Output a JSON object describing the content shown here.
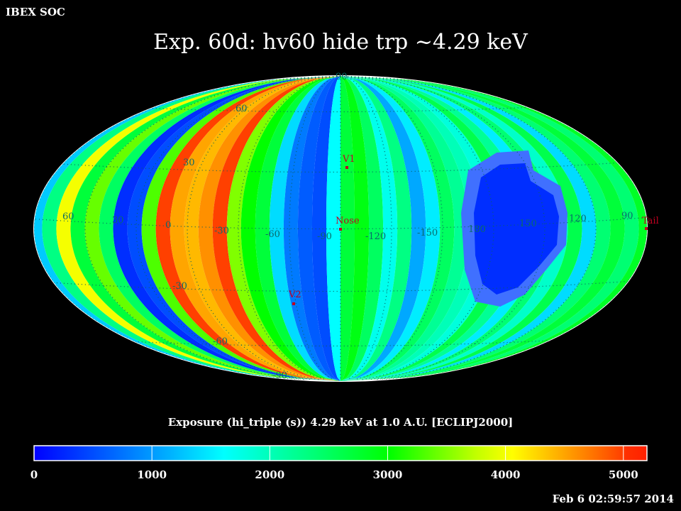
{
  "header": {
    "source": "IBEX SOC",
    "title": "Exp.   60d: hv60 hide trp ~4.29 keV"
  },
  "colorbar": {
    "title": "Exposure (hi_triple (s))  4.29 keV at 1.0 A.U. [ECLIPJ2000]",
    "ticks": [
      "0",
      "1000",
      "2000",
      "3000",
      "4000",
      "5000"
    ],
    "tick_values": [
      0,
      1000,
      2000,
      3000,
      4000,
      5000
    ],
    "range": [
      0,
      5200
    ]
  },
  "timestamp": "Feb  6 02:59:57 2014",
  "chart_data": {
    "type": "heatmap",
    "projection": "Mollweide",
    "title": "Exp.   60d: hv60 hide trp ~4.29 keV",
    "colorbar_label": "Exposure (hi_triple (s))  4.29 keV at 1.0 A.U. [ECLIPJ2000]",
    "zlim": [
      0,
      5200
    ],
    "band_values": [
      1300,
      2300,
      4000,
      2700,
      3400,
      2500,
      300,
      500,
      3300,
      5000,
      4500,
      4400,
      4600,
      5000,
      3500,
      3000,
      2700,
      1400,
      800,
      600,
      500,
      1600,
      2700,
      2900,
      2500,
      1700,
      2300,
      1100,
      1500,
      2500,
      2200,
      2000,
      1800,
      2600,
      2200,
      1500,
      2400,
      1900,
      2600,
      1400,
      2400,
      2700,
      2400,
      2800
    ],
    "low_exposure_region_value": 300,
    "latitude_labels": [
      "90",
      "60",
      "30",
      "-30",
      "-60",
      "-90"
    ],
    "longitude_labels": [
      "60",
      "30",
      "0",
      "-30",
      "-60",
      "-90",
      "-120",
      "-150",
      "180",
      "150",
      "120",
      "90"
    ],
    "markers": [
      {
        "label": "V1"
      },
      {
        "label": "Nose"
      },
      {
        "label": "V2"
      },
      {
        "label": "Tail"
      }
    ]
  }
}
